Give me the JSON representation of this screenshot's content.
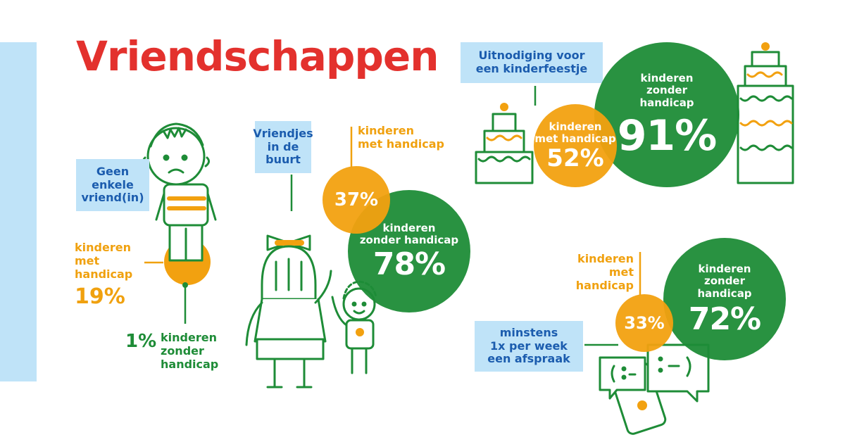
{
  "title": "Vriendschappen",
  "colors": {
    "title": "#e3312d",
    "green": "#1e8c37",
    "orange": "#f0a10f",
    "bubble": "#bfe3f8",
    "bubble_text": "#1b5cae"
  },
  "friendless": {
    "bubble": [
      "Geen",
      "enkele",
      "vriend(in)"
    ],
    "with_label": [
      "kinderen",
      "met",
      "handicap"
    ],
    "with_pct": "19%",
    "without_pct": "1%",
    "without_label": [
      "kinderen",
      "zonder",
      "handicap"
    ]
  },
  "neighbourhood": {
    "bubble": [
      "Vriendjes",
      "in de",
      "buurt"
    ],
    "with_label": [
      "kinderen",
      "met handicap"
    ],
    "with_pct": "37%",
    "without_label": [
      "kinderen",
      "zonder handicap"
    ],
    "without_pct": "78%"
  },
  "party": {
    "bubble": [
      "Uitnodiging voor",
      "een kinderfeestje"
    ],
    "with_label": [
      "kinderen",
      "met handicap"
    ],
    "with_pct": "52%",
    "without_label": [
      "kinderen",
      "zonder",
      "handicap"
    ],
    "without_pct": "91%"
  },
  "weekly": {
    "bubble": [
      "minstens",
      "1x per week",
      "een afspraak"
    ],
    "with_label": [
      "kinderen",
      "met handicap"
    ],
    "with_pct": "33%",
    "without_label": [
      "kinderen",
      "zonder",
      "handicap"
    ],
    "without_pct": "72%"
  },
  "icons": [
    "sad-child-icon",
    "girl-with-bow-icon",
    "small-child-icon",
    "small-cake-icon",
    "tall-cake-icon",
    "phone-chat-icon"
  ]
}
